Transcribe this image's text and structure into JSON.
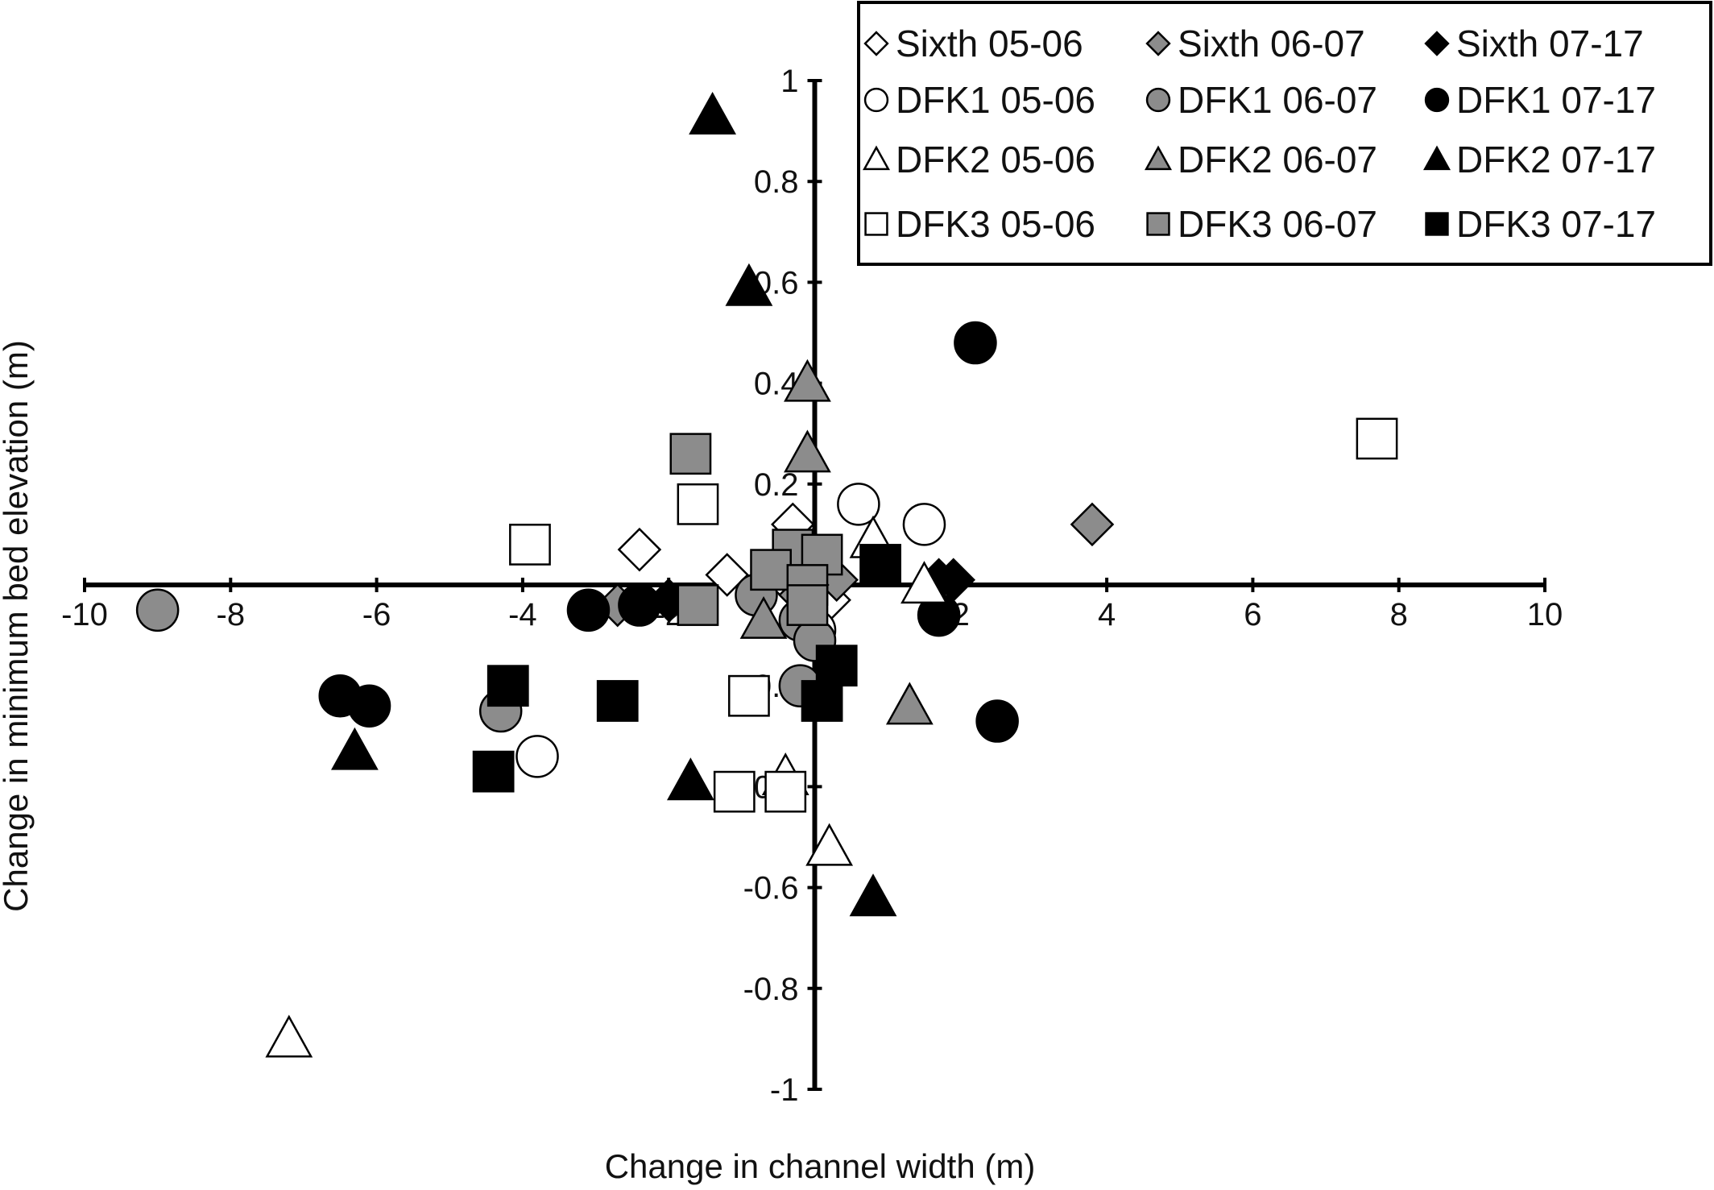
{
  "chart_data": {
    "type": "scatter",
    "title": "",
    "xlabel": "Change in channel width (m)",
    "ylabel": "Change in minimum bed elevation (m)",
    "xlim": [
      -10,
      10
    ],
    "ylim": [
      -1,
      1
    ],
    "x_ticks": [
      -10,
      -8,
      -6,
      -4,
      -2,
      0,
      2,
      4,
      6,
      8,
      10
    ],
    "x_tick_labels": [
      "-10",
      "-8",
      "-6",
      "-4",
      "-2",
      "0",
      "2",
      "4",
      "6",
      "8",
      "10"
    ],
    "y_ticks": [
      -1,
      -0.8,
      -0.6,
      -0.4,
      -0.2,
      0,
      0.2,
      0.4,
      0.6,
      0.8,
      1
    ],
    "y_tick_labels": [
      "-1",
      "-0.8",
      "-0.6",
      "-0.4",
      "-0.2",
      "0",
      "0.2",
      "0.4",
      "0.6",
      "0.8",
      "1"
    ],
    "grid": false,
    "legend_position": "top-right",
    "colors": {
      "white": "#ffffff",
      "gray": "#8c8c8c",
      "black": "#000000"
    },
    "series": [
      {
        "name": "Sixth 05-06",
        "marker": "diamond",
        "fill": "white",
        "points": [
          [
            -2.4,
            0.07
          ],
          [
            -1.2,
            0.02
          ],
          [
            -0.3,
            0.12
          ],
          [
            -0.4,
            0.01
          ],
          [
            0.2,
            -0.03
          ]
        ]
      },
      {
        "name": "Sixth 06-07",
        "marker": "diamond",
        "fill": "gray",
        "points": [
          [
            3.8,
            0.12
          ],
          [
            -2.7,
            -0.04
          ],
          [
            0.3,
            0.01
          ],
          [
            -0.2,
            -0.02
          ]
        ]
      },
      {
        "name": "Sixth 07-17",
        "marker": "diamond",
        "fill": "black",
        "points": [
          [
            -2.0,
            -0.03
          ],
          [
            1.7,
            0.01
          ],
          [
            1.9,
            0.01
          ],
          [
            -0.1,
            0.0
          ]
        ]
      },
      {
        "name": "DFK1 05-06",
        "marker": "circle",
        "fill": "white",
        "points": [
          [
            0.6,
            0.16
          ],
          [
            1.5,
            0.12
          ],
          [
            -3.8,
            -0.34
          ],
          [
            0.0,
            -0.09
          ]
        ]
      },
      {
        "name": "DFK1 06-07",
        "marker": "circle",
        "fill": "gray",
        "points": [
          [
            -9.0,
            -0.05
          ],
          [
            -4.3,
            -0.25
          ],
          [
            -0.8,
            -0.02
          ],
          [
            -0.2,
            -0.07
          ],
          [
            -0.2,
            -0.2
          ],
          [
            0.0,
            -0.11
          ]
        ]
      },
      {
        "name": "DFK1 07-17",
        "marker": "circle",
        "fill": "black",
        "points": [
          [
            2.2,
            0.48
          ],
          [
            -3.1,
            -0.05
          ],
          [
            -2.4,
            -0.04
          ],
          [
            -6.5,
            -0.22
          ],
          [
            -6.1,
            -0.24
          ],
          [
            2.5,
            -0.27
          ],
          [
            1.7,
            -0.06
          ]
        ]
      },
      {
        "name": "DFK2 05-06",
        "marker": "triangle",
        "fill": "white",
        "points": [
          [
            -7.2,
            -0.9
          ],
          [
            0.2,
            -0.52
          ],
          [
            -0.4,
            -0.38
          ],
          [
            0.8,
            0.09
          ],
          [
            1.5,
            0.0
          ]
        ]
      },
      {
        "name": "DFK2 06-07",
        "marker": "triangle",
        "fill": "gray",
        "points": [
          [
            -0.1,
            0.4
          ],
          [
            -0.1,
            0.26
          ],
          [
            -0.7,
            -0.07
          ],
          [
            1.3,
            -0.24
          ]
        ]
      },
      {
        "name": "DFK2 07-17",
        "marker": "triangle",
        "fill": "black",
        "points": [
          [
            -1.4,
            0.93
          ],
          [
            -0.9,
            0.59
          ],
          [
            -6.3,
            -0.33
          ],
          [
            -1.7,
            -0.39
          ],
          [
            0.8,
            -0.62
          ]
        ]
      },
      {
        "name": "DFK3 05-06",
        "marker": "square",
        "fill": "white",
        "points": [
          [
            7.7,
            0.29
          ],
          [
            -1.6,
            0.16
          ],
          [
            -3.9,
            0.08
          ],
          [
            -0.9,
            -0.22
          ],
          [
            -1.1,
            -0.41
          ],
          [
            -0.4,
            -0.41
          ]
        ]
      },
      {
        "name": "DFK3 06-07",
        "marker": "square",
        "fill": "gray",
        "points": [
          [
            -1.7,
            0.26
          ],
          [
            -1.6,
            -0.04
          ],
          [
            -0.3,
            0.07
          ],
          [
            0.1,
            0.06
          ],
          [
            -0.6,
            0.03
          ],
          [
            -0.1,
            0.0
          ],
          [
            -0.1,
            -0.04
          ]
        ]
      },
      {
        "name": "DFK3 07-17",
        "marker": "square",
        "fill": "black",
        "points": [
          [
            -4.4,
            -0.37
          ],
          [
            -4.2,
            -0.2
          ],
          [
            -2.7,
            -0.23
          ],
          [
            0.9,
            0.04
          ],
          [
            0.3,
            -0.16
          ],
          [
            0.1,
            -0.23
          ]
        ]
      }
    ]
  }
}
